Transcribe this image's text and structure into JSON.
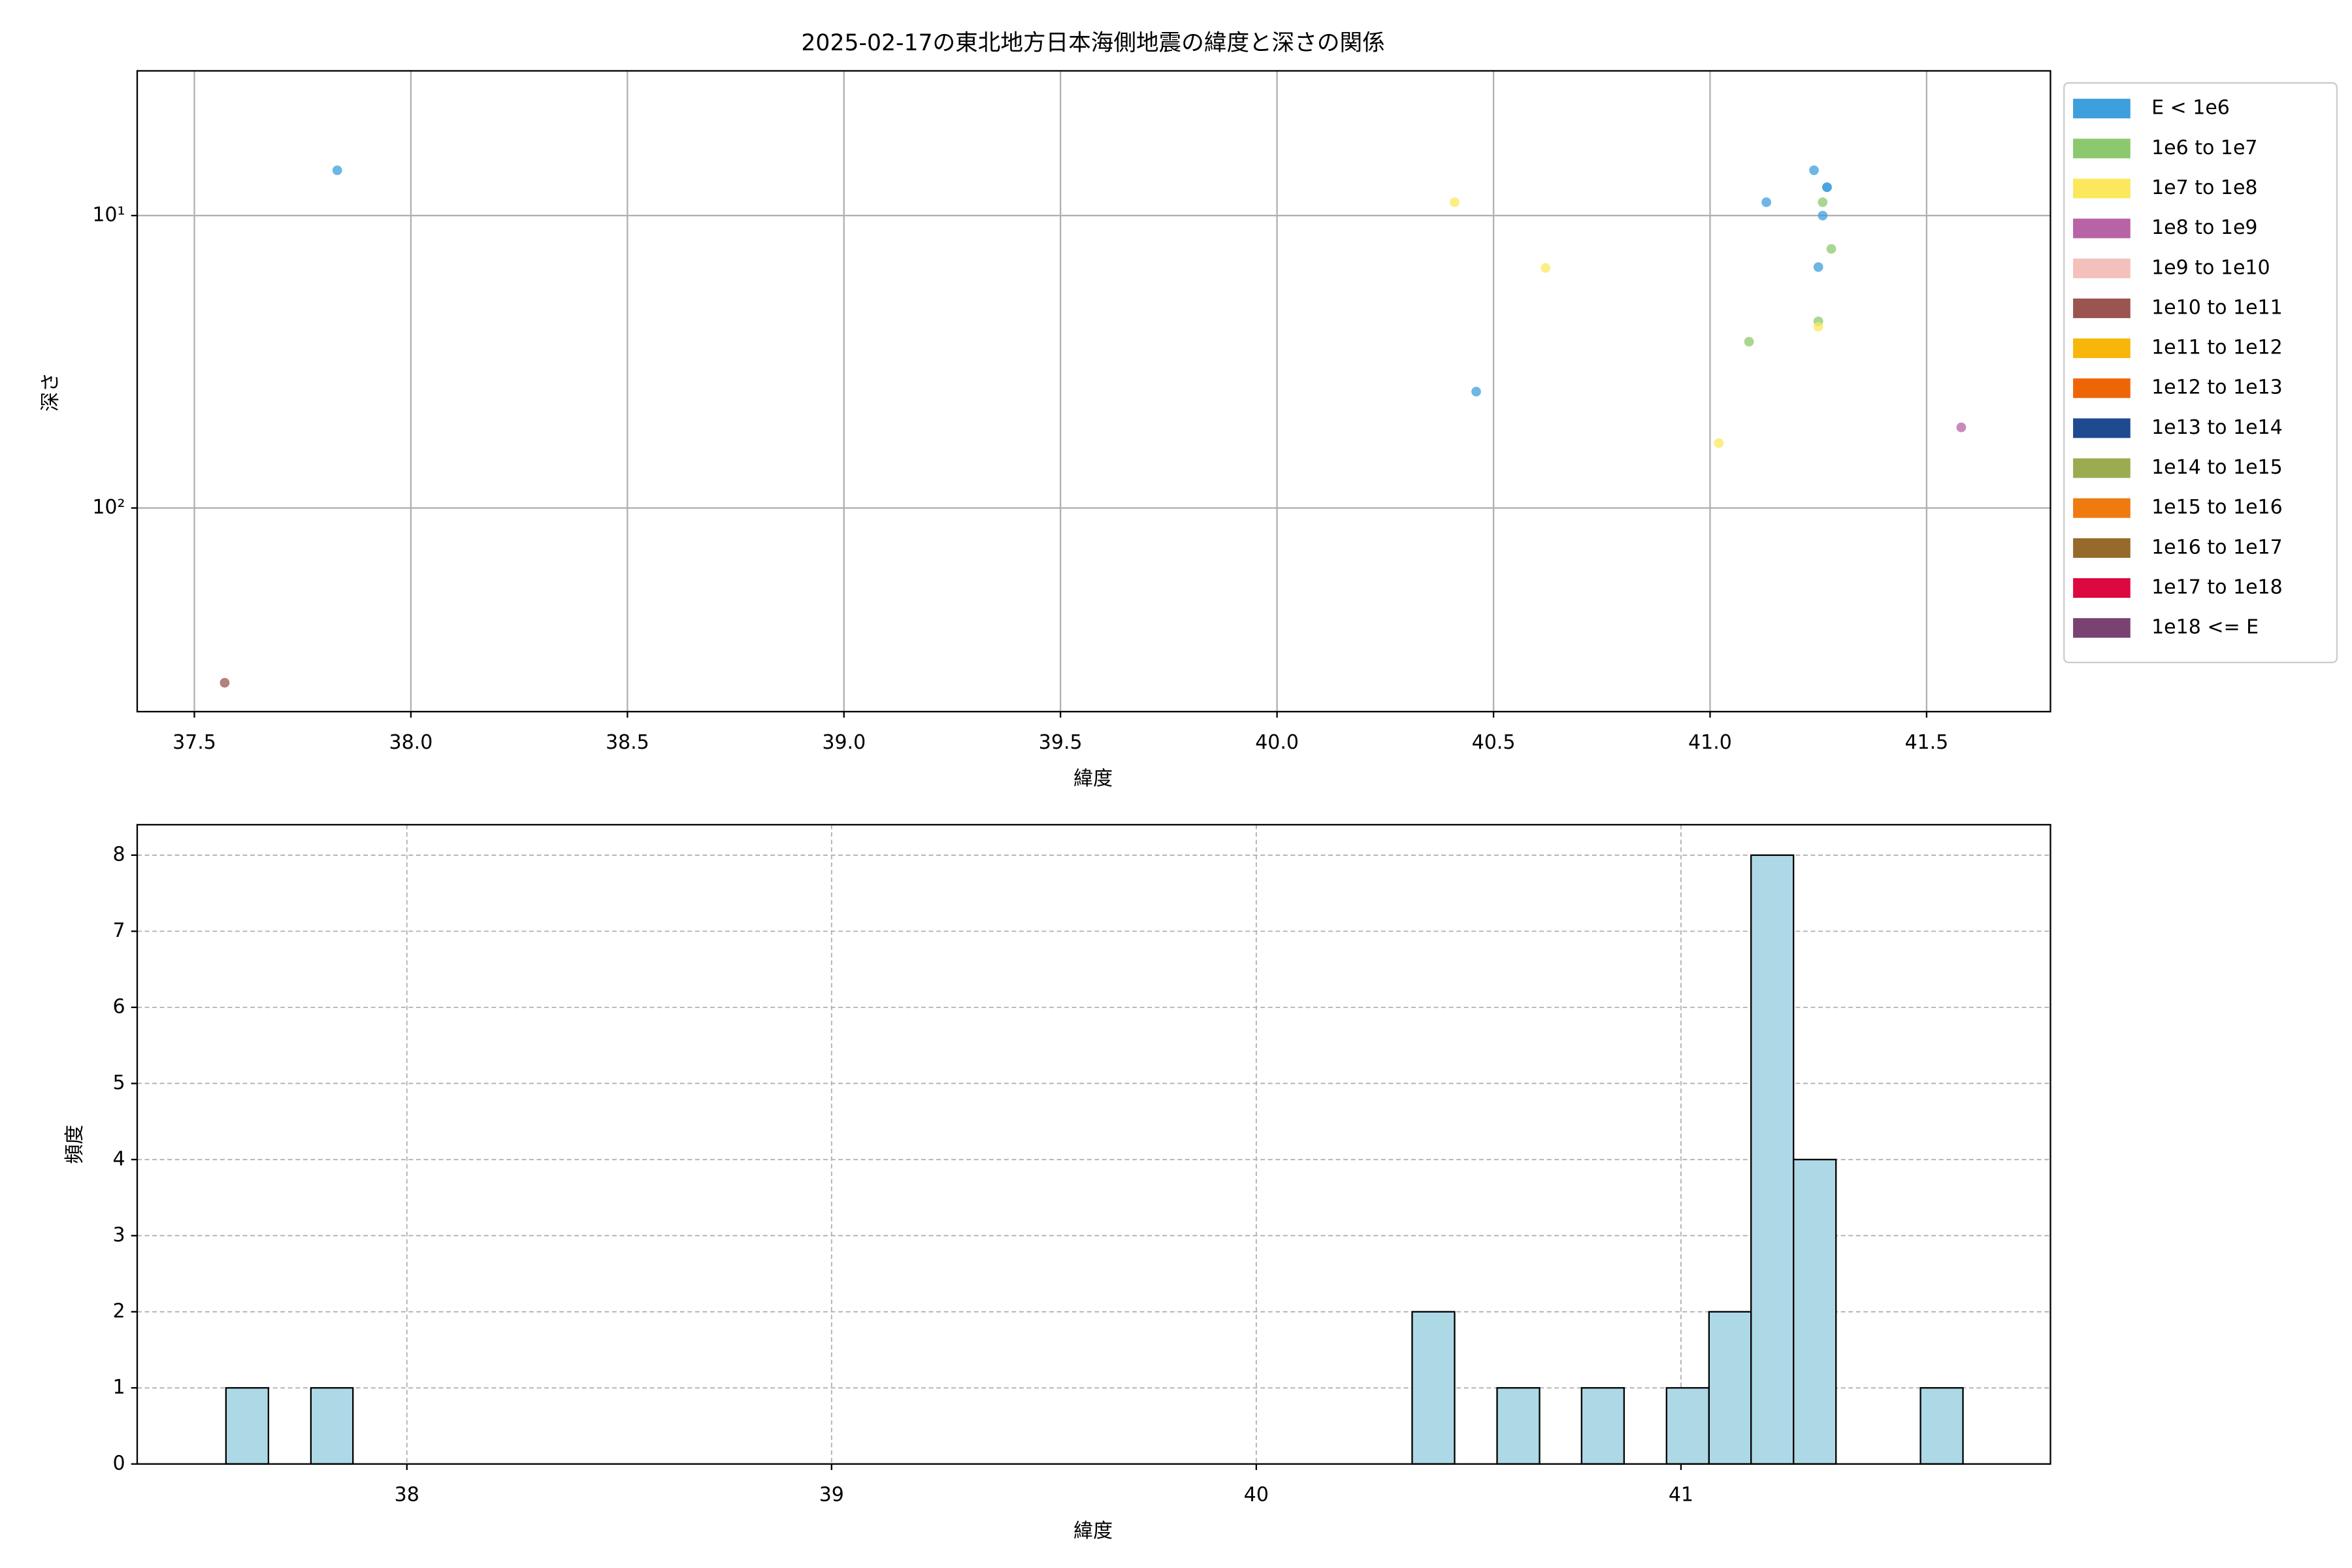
{
  "chart_data": [
    {
      "type": "scatter",
      "title": "2025-02-17の東北地方日本海側地震の緯度と深さの関係",
      "xlabel": "緯度",
      "ylabel": "深さ",
      "xlim": [
        37.368,
        41.786
      ],
      "ylim": [
        497,
        3.2
      ],
      "yscale": "log",
      "grid": true,
      "legend": "outside upper right",
      "xticks": [
        37.5,
        {
          "value": 38,
          "label": "38.0"
        },
        38.5,
        {
          "value": 39,
          "label": "39.0"
        },
        39.5,
        {
          "value": 40,
          "label": "40.0"
        },
        40.5,
        {
          "value": 41,
          "label": "41.0"
        },
        41.5
      ],
      "yticks": [
        {
          "value": 10,
          "label": "10¹"
        },
        {
          "value": 100,
          "label": "10²"
        }
      ],
      "series": [
        {
          "name": "E < 1e6",
          "color": "#3d9fdb",
          "x": [
            37.83,
            40.46,
            41.13,
            41.24,
            41.27,
            41.27,
            41.26,
            41.25
          ],
          "values": [
            7.0,
            40,
            9.0,
            7.0,
            8.0,
            8.0,
            10,
            15
          ]
        },
        {
          "name": "1e6 to 1e7",
          "color": "#8cc96e",
          "x": [
            41.09,
            41.26,
            41.28,
            41.25
          ],
          "values": [
            27,
            9.0,
            13,
            23
          ]
        },
        {
          "name": "1e7 to 1e8",
          "color": "#fbe85c",
          "x": [
            40.41,
            40.62,
            41.02,
            41.25
          ],
          "values": [
            9.0,
            15.1,
            60,
            24
          ]
        },
        {
          "name": "1e8 to 1e9",
          "color": "#b863a5",
          "x": [
            41.58
          ],
          "values": [
            53
          ]
        },
        {
          "name": "1e9 to 1e10",
          "color": "#f4c0bb",
          "x": [],
          "values": []
        },
        {
          "name": "1e10 to 1e11",
          "color": "#9a5550",
          "x": [
            37.57
          ],
          "values": [
            396
          ]
        },
        {
          "name": "1e11 to 1e12",
          "color": "#f8b50a",
          "x": [],
          "values": []
        },
        {
          "name": "1e12 to 1e13",
          "color": "#ee6508",
          "x": [],
          "values": []
        },
        {
          "name": "1e13 to 1e14",
          "color": "#1e4a90",
          "x": [],
          "values": []
        },
        {
          "name": "1e14 to 1e15",
          "color": "#9bab50",
          "x": [],
          "values": []
        },
        {
          "name": "1e15 to 1e16",
          "color": "#ee7a10",
          "x": [],
          "values": []
        },
        {
          "name": "1e16 to 1e17",
          "color": "#956a2a",
          "x": [],
          "values": []
        },
        {
          "name": "1e17 to 1e18",
          "color": "#de0840",
          "x": [],
          "values": []
        },
        {
          "name": "1e18 <= E",
          "color": "#7a4270",
          "x": [],
          "values": []
        }
      ]
    },
    {
      "type": "histogram",
      "xlabel": "緯度",
      "ylabel": "頻度",
      "color": "#add8e6",
      "edgecolor": "#000000",
      "xlim": [
        37.365,
        41.87
      ],
      "ylim": [
        0,
        8.4
      ],
      "grid": true,
      "xticks": [
        38,
        39,
        40,
        41
      ],
      "yticks": [
        0,
        1,
        2,
        3,
        4,
        5,
        6,
        7,
        8
      ],
      "bins": [
        37.574,
        37.674,
        37.774,
        37.873,
        37.973,
        38.073,
        38.173,
        38.272,
        38.372,
        38.472,
        38.572,
        38.671,
        38.771,
        38.871,
        38.971,
        39.07,
        39.17,
        39.27,
        39.37,
        39.469,
        39.569,
        39.669,
        39.769,
        39.868,
        39.968,
        40.068,
        40.168,
        40.268,
        40.367,
        40.467,
        40.567,
        40.667,
        40.766,
        40.866,
        40.966,
        41.066,
        41.165,
        41.265,
        41.365,
        41.464,
        41.564,
        41.664
      ],
      "values": [
        1,
        0,
        1,
        0,
        0,
        0,
        0,
        0,
        0,
        0,
        0,
        0,
        0,
        0,
        0,
        0,
        0,
        0,
        0,
        0,
        0,
        0,
        0,
        0,
        0,
        0,
        0,
        0,
        2,
        0,
        1,
        0,
        1,
        0,
        1,
        2,
        8,
        4,
        0,
        0,
        1
      ]
    }
  ]
}
